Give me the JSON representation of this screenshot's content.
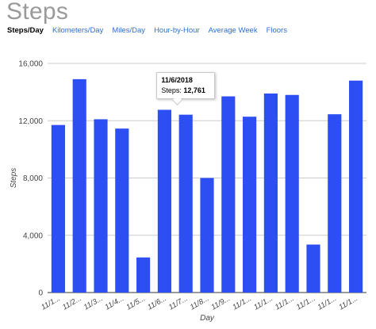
{
  "page": {
    "title": "Steps"
  },
  "tabs": [
    {
      "label": "Steps/Day",
      "active": true
    },
    {
      "label": "Kilometers/Day",
      "active": false
    },
    {
      "label": "Miles/Day",
      "active": false
    },
    {
      "label": "Hour-by-Hour",
      "active": false
    },
    {
      "label": "Average Week",
      "active": false
    },
    {
      "label": "Floors",
      "active": false
    }
  ],
  "colors": {
    "bar": "#2c4ef2",
    "title": "#9a9a9a",
    "link": "#2f6fcf",
    "grid": "#cccccc"
  },
  "tooltip": {
    "date": "11/6/2018",
    "label": "Steps: ",
    "value": "12,761",
    "bar_index": 5
  },
  "chart_data": {
    "type": "bar",
    "xlabel": "Day",
    "ylabel": "Steps",
    "ylim": [
      0,
      16000
    ],
    "yticks": [
      0,
      4000,
      8000,
      12000,
      16000
    ],
    "ytick_labels": [
      "0",
      "4,000",
      "8,000",
      "12,000",
      "16,000"
    ],
    "grid": true,
    "categories": [
      "11/1...",
      "11/2...",
      "11/3...",
      "11/4...",
      "11/5...",
      "11/6...",
      "11/7...",
      "11/8...",
      "11/9...",
      "11/1...",
      "11/1...",
      "11/1...",
      "11/1...",
      "11/1...",
      "11/1..."
    ],
    "values": [
      11700,
      14900,
      12100,
      11450,
      2450,
      12761,
      12420,
      8000,
      13700,
      12280,
      13900,
      13800,
      3350,
      12450,
      14800
    ]
  }
}
